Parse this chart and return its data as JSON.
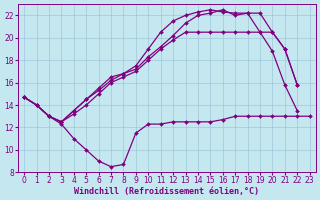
{
  "background_color": "#c5e8f0",
  "grid_color": "#9dc8d8",
  "line_color": "#800080",
  "marker": "D",
  "markersize": 2.0,
  "linewidth": 0.9,
  "xlabel": "Windchill (Refroidissement éolien,°C)",
  "xlabel_fontsize": 6.0,
  "tick_fontsize": 5.5,
  "tick_color": "#800080",
  "label_color": "#800080",
  "xlim": [
    -0.5,
    23.5
  ],
  "ylim": [
    8,
    23
  ],
  "yticks": [
    8,
    10,
    12,
    14,
    16,
    18,
    20,
    22
  ],
  "xticks": [
    0,
    1,
    2,
    3,
    4,
    5,
    6,
    7,
    8,
    9,
    10,
    11,
    12,
    13,
    14,
    15,
    16,
    17,
    18,
    19,
    20,
    21,
    22,
    23
  ],
  "series": [
    {
      "x": [
        0,
        1,
        2,
        3,
        4,
        5,
        6,
        7,
        8,
        9,
        10,
        11,
        12,
        13,
        14,
        15,
        16,
        17,
        18,
        19,
        20,
        21,
        22,
        23
      ],
      "y": [
        14.7,
        14.0,
        13.0,
        12.3,
        11.0,
        10.0,
        9.0,
        8.5,
        8.7,
        11.5,
        12.3,
        12.3,
        12.5,
        12.5,
        12.5,
        12.5,
        12.7,
        13.0,
        13.0,
        13.0,
        13.0,
        13.0,
        13.0,
        13.0
      ]
    },
    {
      "x": [
        0,
        1,
        2,
        3,
        4,
        5,
        6,
        7,
        8,
        9,
        10,
        11,
        12,
        13,
        14,
        15,
        16,
        17,
        18,
        19,
        20,
        21,
        22
      ],
      "y": [
        14.7,
        14.0,
        13.0,
        12.5,
        13.5,
        14.5,
        15.5,
        16.5,
        16.8,
        17.5,
        19.0,
        20.5,
        21.5,
        22.0,
        22.3,
        22.5,
        22.3,
        22.2,
        22.2,
        22.2,
        20.5,
        19.0,
        15.8
      ]
    },
    {
      "x": [
        0,
        1,
        2,
        3,
        4,
        5,
        6,
        7,
        8,
        9,
        10,
        11,
        12,
        13,
        14,
        15,
        16,
        17,
        18,
        19,
        20,
        21,
        22
      ],
      "y": [
        14.7,
        14.0,
        13.0,
        12.5,
        13.2,
        14.0,
        15.0,
        16.0,
        16.5,
        17.0,
        18.0,
        19.0,
        19.8,
        20.5,
        20.5,
        20.5,
        20.5,
        20.5,
        20.5,
        20.5,
        20.5,
        19.0,
        15.8
      ]
    },
    {
      "x": [
        0,
        1,
        2,
        3,
        4,
        5,
        6,
        7,
        8,
        9,
        10,
        11,
        12,
        13,
        14,
        15,
        16,
        17,
        18,
        19,
        20,
        21,
        22
      ],
      "y": [
        14.7,
        14.0,
        13.0,
        12.5,
        13.5,
        14.5,
        15.3,
        16.2,
        16.8,
        17.2,
        18.3,
        19.2,
        20.2,
        21.3,
        22.0,
        22.2,
        22.5,
        22.0,
        22.2,
        20.5,
        18.8,
        15.8,
        13.5
      ]
    }
  ]
}
